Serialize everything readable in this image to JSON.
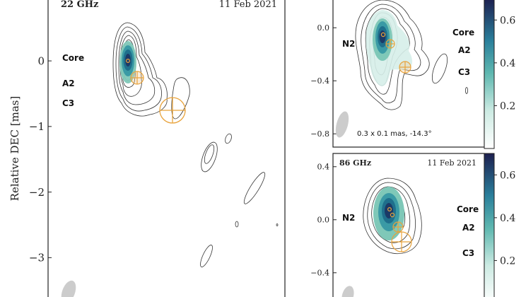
{
  "chart_data": [
    {
      "type": "contour",
      "panel": "left",
      "title_left": "22 GHz",
      "title_right": "11 Feb 2021",
      "ylabel": "Relative DEC [mas]",
      "ylim": [
        -3.6,
        0.95
      ],
      "yticks": [
        0,
        -1,
        -2,
        -3
      ],
      "ytick_labels": [
        "0",
        "−1",
        "−2",
        "−3"
      ],
      "labels": [
        "Core",
        "A2",
        "C3"
      ]
    },
    {
      "type": "contour",
      "panel": "top-right",
      "ylim": [
        -0.9,
        0.22
      ],
      "yticks": [
        0.0,
        -0.4,
        -0.8
      ],
      "ytick_labels": [
        "0.0",
        "−0.4",
        "−0.8"
      ],
      "labels": [
        "N2",
        "Core",
        "A2",
        "C3"
      ],
      "beam_label": "0.3 x 0.1 mas, -14.3°",
      "colorbar_ticks": [
        0.6,
        0.4,
        0.2
      ],
      "colorbar_tick_labels": [
        "0.6",
        "0.4",
        "0.2"
      ]
    },
    {
      "type": "contour",
      "panel": "bottom-right",
      "title_left": "86 GHz",
      "title_right": "11 Feb 2021",
      "ylim": [
        -0.62,
        0.5
      ],
      "yticks": [
        0.4,
        0.0,
        -0.4
      ],
      "ytick_labels": [
        "0.4",
        "0.0",
        "−0.4"
      ],
      "labels": [
        "N2",
        "Core",
        "A2",
        "C3"
      ],
      "colorbar_ticks": [
        0.6,
        0.4,
        0.2
      ],
      "colorbar_tick_labels": [
        "0.6",
        "0.4",
        "0.2"
      ]
    }
  ],
  "colors": {
    "component": "#e8a33c",
    "core_fill": "#1b3a67",
    "mid_fill": "#3a9aa5",
    "light_fill": "#bfe3dc",
    "contour": "#333333",
    "beam": "#cccccc"
  }
}
